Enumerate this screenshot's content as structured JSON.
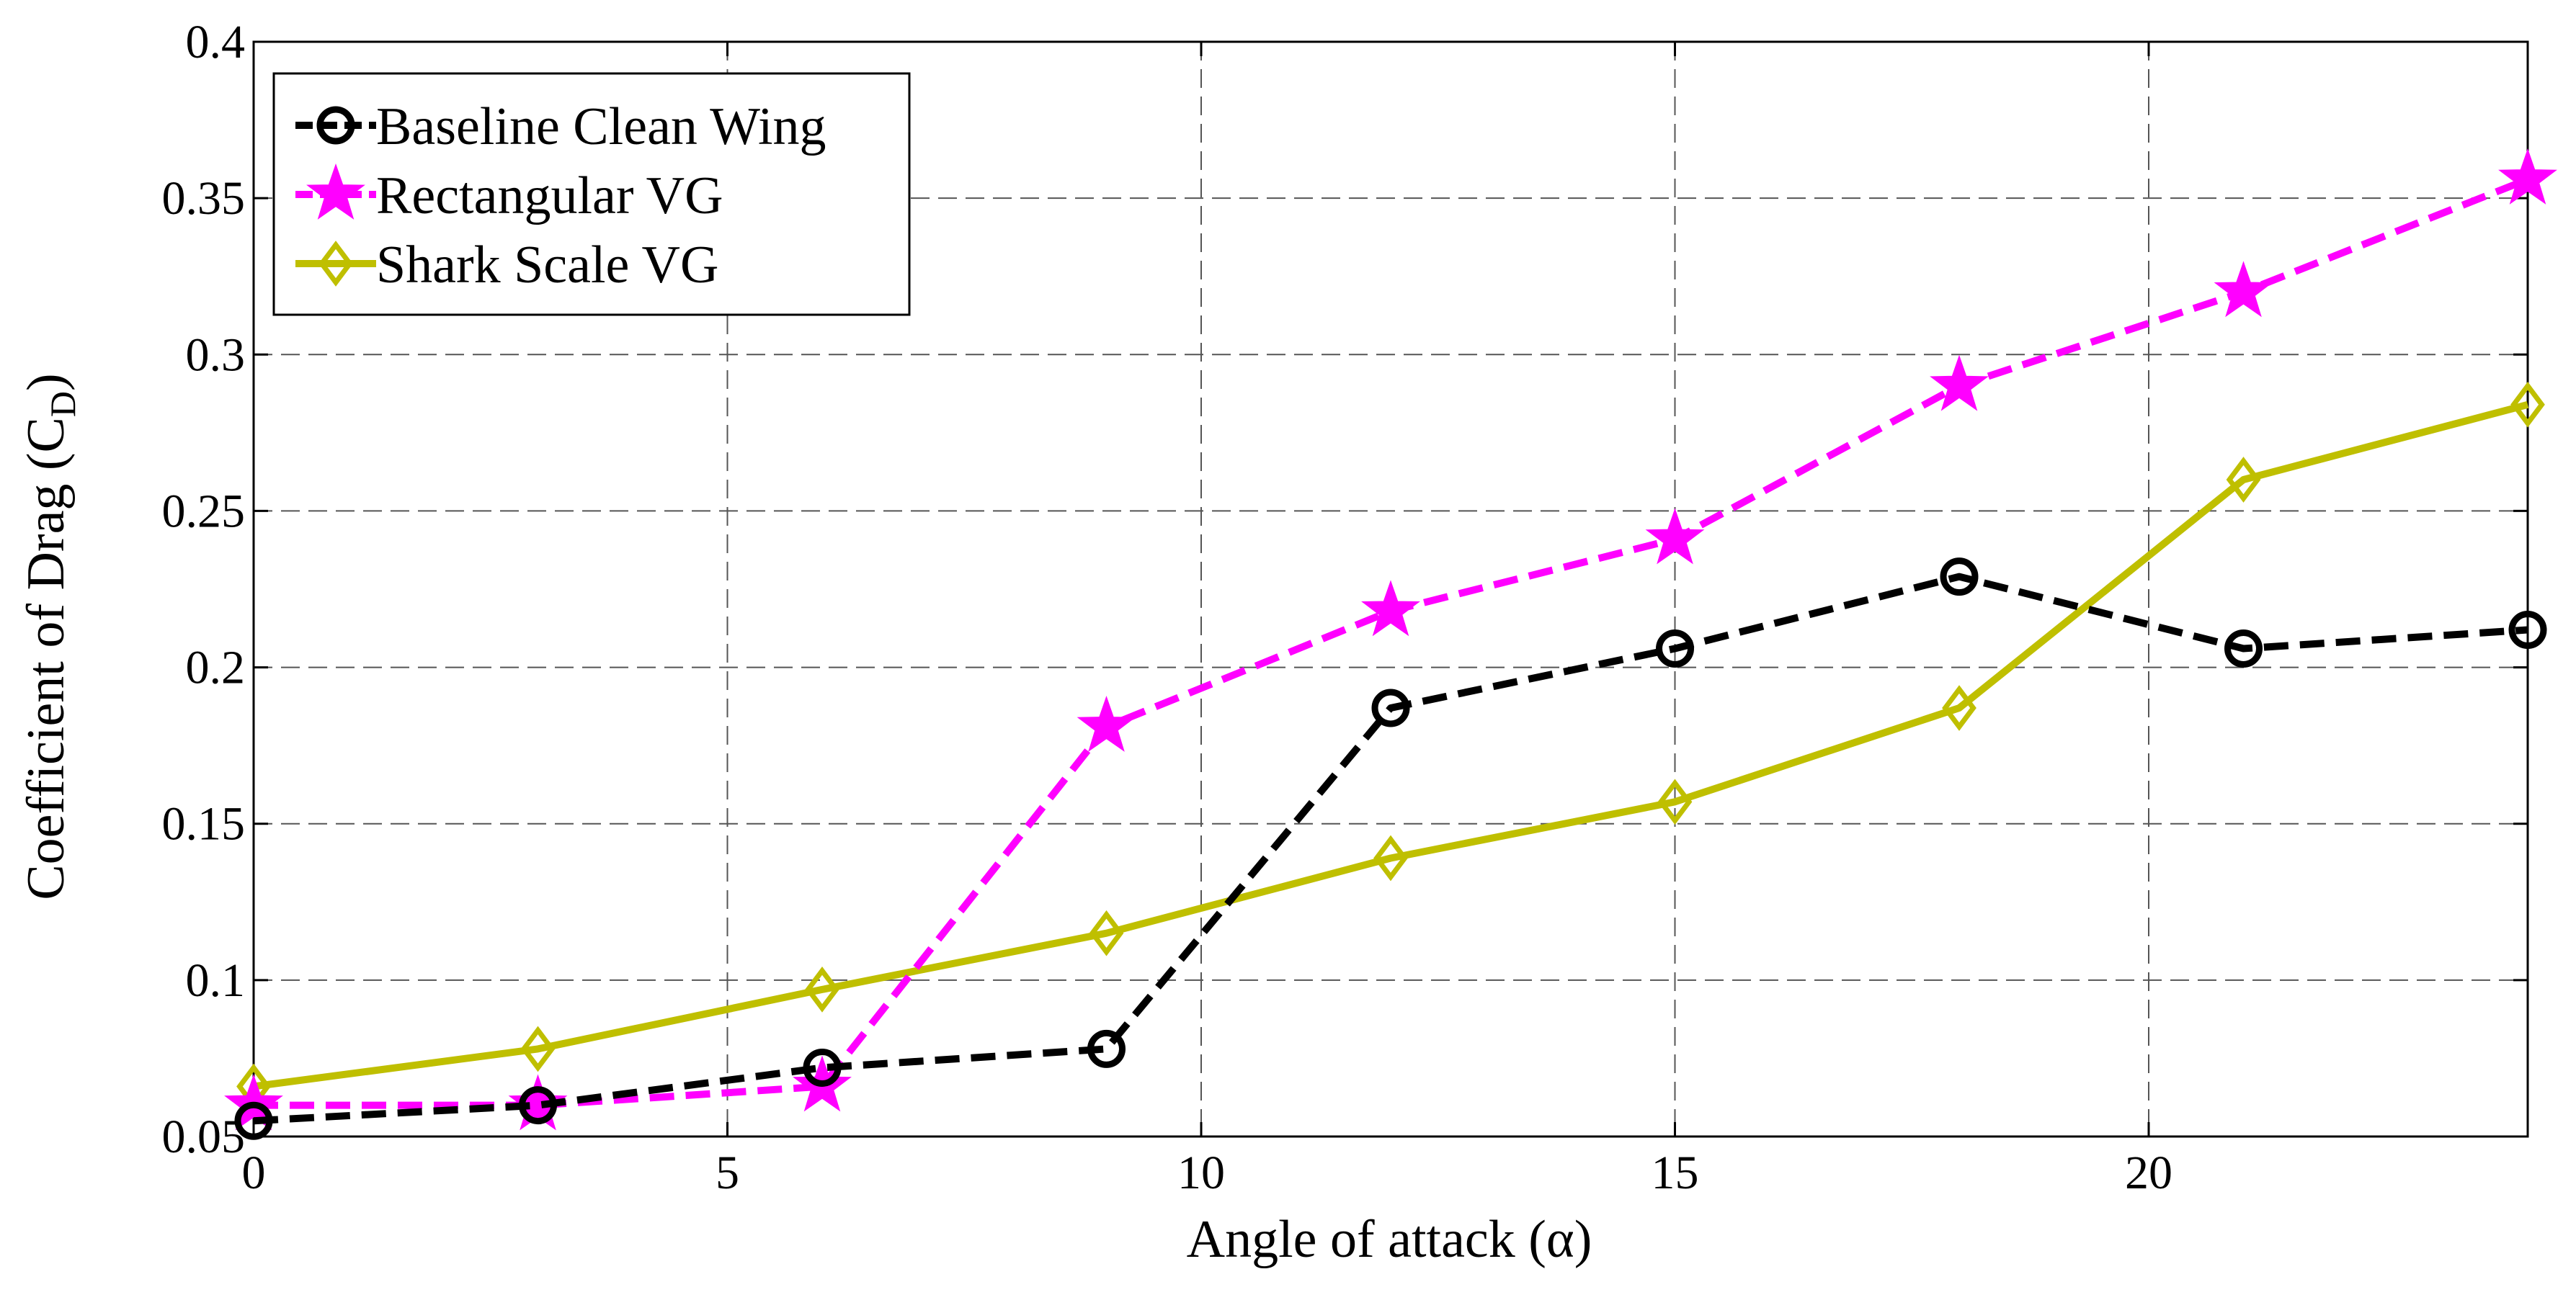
{
  "chart_data": {
    "type": "line",
    "title": "",
    "xlabel": "Angle of attack (α)",
    "ylabel": {
      "main": "Coefficient of Drag (C",
      "subscript": "D",
      "close": ")"
    },
    "xlim": [
      0,
      24
    ],
    "ylim": [
      0.05,
      0.4
    ],
    "xticks": [
      0,
      5,
      10,
      15,
      20
    ],
    "xtick_labels": [
      "0",
      "5",
      "10",
      "15",
      "20"
    ],
    "yticks": [
      0.05,
      0.1,
      0.15,
      0.2,
      0.25,
      0.3,
      0.35,
      0.4
    ],
    "ytick_labels": [
      "0.05",
      "0.1",
      "0.15",
      "0.2",
      "0.25",
      "0.3",
      "0.35",
      "0.4"
    ],
    "grid": true,
    "legend_position": "top-left",
    "x": [
      0,
      3,
      6,
      9,
      12,
      15,
      18,
      21,
      24
    ],
    "series": [
      {
        "name": "Baseline Clean Wing",
        "color": "#000000",
        "line_style": "dashed",
        "marker": "circle",
        "values": [
          0.055,
          0.06,
          0.072,
          0.078,
          0.187,
          0.206,
          0.229,
          0.206,
          0.212
        ]
      },
      {
        "name": "Rectangular VG",
        "color": "#ff00ff",
        "line_style": "dashed",
        "marker": "star",
        "values": [
          0.06,
          0.06,
          0.066,
          0.181,
          0.218,
          0.241,
          0.29,
          0.32,
          0.356
        ]
      },
      {
        "name": "Shark Scale VG",
        "color": "#bfbf00",
        "line_style": "solid",
        "marker": "diamond",
        "values": [
          0.066,
          0.078,
          0.097,
          0.115,
          0.139,
          0.157,
          0.187,
          0.26,
          0.284
        ]
      }
    ]
  }
}
